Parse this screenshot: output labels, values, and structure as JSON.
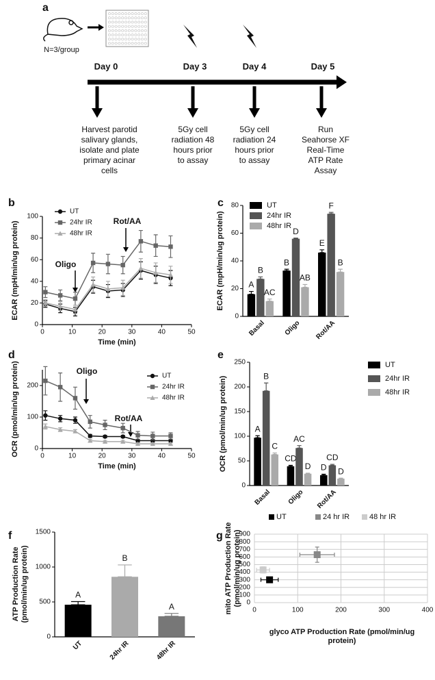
{
  "timeline": {
    "panel": "a",
    "group": "N=3/group",
    "days": [
      {
        "label": "Day 0",
        "lines": [
          "Harvest parotid",
          "salivary glands,",
          "isolate and plate",
          "primary acinar",
          "cells"
        ]
      },
      {
        "label": "Day 3",
        "lines": [
          "5Gy cell",
          "radiation 48",
          "hours prior",
          "to assay"
        ]
      },
      {
        "label": "Day 4",
        "lines": [
          "5Gy cell",
          "radiation 24",
          "hours prior",
          "to assay"
        ]
      },
      {
        "label": "Day 5",
        "lines": [
          "Run",
          "Seahorse XF",
          "Real-Time",
          "ATP Rate",
          "Assay"
        ]
      }
    ]
  },
  "chart_data": [
    {
      "type": "line",
      "panel": "b",
      "x_label": "Time (min)",
      "y_label": "ECAR (mpH/min/ug protein)",
      "annotations": [
        "Oligo",
        "Rot/AA"
      ],
      "x": [
        1,
        6,
        11,
        17,
        22,
        27,
        33,
        38,
        43
      ],
      "xlim": [
        0,
        50
      ],
      "xticks": [
        0,
        10,
        20,
        30,
        40,
        50
      ],
      "ylim": [
        0,
        100
      ],
      "yticks": [
        0,
        20,
        40,
        60,
        80,
        100
      ],
      "series": [
        {
          "name": "UT",
          "color": "#111111",
          "marker": "circle",
          "values": [
            19,
            15,
            12,
            35,
            31,
            32,
            50,
            46,
            43
          ],
          "errors": [
            3,
            4,
            4,
            6,
            6,
            6,
            8,
            8,
            7
          ]
        },
        {
          "name": "24hr IR",
          "color": "#666666",
          "marker": "square",
          "values": [
            30,
            27,
            24,
            57,
            56,
            55,
            77,
            73,
            72
          ],
          "errors": [
            5,
            5,
            6,
            9,
            9,
            8,
            10,
            10,
            10
          ]
        },
        {
          "name": "48hr IR",
          "color": "#aaaaaa",
          "marker": "triangle",
          "values": [
            20,
            17,
            14,
            37,
            33,
            34,
            52,
            48,
            46
          ],
          "errors": [
            3,
            4,
            4,
            7,
            7,
            7,
            9,
            9,
            8
          ]
        }
      ]
    },
    {
      "type": "bar",
      "panel": "c",
      "y_label": "ECAR (mpH/min/ug protein)",
      "categories": [
        "Basal",
        "Oligo",
        "Rot/AA"
      ],
      "ylim": [
        0,
        80
      ],
      "yticks": [
        0,
        20,
        40,
        60,
        80
      ],
      "series": [
        {
          "name": "UT",
          "color": "#000000",
          "values": [
            16,
            33,
            46
          ],
          "errors": [
            2,
            1,
            2
          ],
          "significance": [
            "A",
            "B",
            "E"
          ]
        },
        {
          "name": "24hr IR",
          "color": "#555555",
          "values": [
            27,
            56,
            74
          ],
          "errors": [
            1.5,
            0.5,
            1
          ],
          "significance": [
            "B",
            "D",
            "F"
          ]
        },
        {
          "name": "48hr IR",
          "color": "#aaaaaa",
          "values": [
            11,
            21,
            32
          ],
          "errors": [
            1.5,
            2,
            2
          ],
          "significance": [
            "AC",
            "AB",
            "B"
          ]
        }
      ]
    },
    {
      "type": "line",
      "panel": "d",
      "x_label": "Time (min)",
      "y_label": "OCR (pmol/min/ug protein)",
      "annotations": [
        "Oligo",
        "Rot/AA"
      ],
      "x": [
        1,
        6,
        11,
        16,
        21,
        27,
        32,
        37,
        43
      ],
      "xlim": [
        0,
        50
      ],
      "xticks": [
        0,
        10,
        20,
        30,
        40,
        50
      ],
      "ylim": [
        0,
        250
      ],
      "yticks": [
        0,
        100,
        200
      ],
      "series": [
        {
          "name": "UT",
          "color": "#111111",
          "marker": "circle",
          "values": [
            105,
            95,
            90,
            40,
            38,
            38,
            25,
            25,
            25
          ],
          "errors": [
            15,
            10,
            10,
            5,
            4,
            4,
            4,
            4,
            4
          ]
        },
        {
          "name": "24hr IR",
          "color": "#666666",
          "marker": "square",
          "values": [
            215,
            195,
            160,
            85,
            75,
            65,
            42,
            40,
            40
          ],
          "errors": [
            45,
            45,
            35,
            20,
            15,
            15,
            12,
            12,
            10
          ]
        },
        {
          "name": "48hr IR",
          "color": "#aaaaaa",
          "marker": "triangle",
          "values": [
            70,
            60,
            55,
            25,
            22,
            22,
            15,
            15,
            15
          ],
          "errors": [
            8,
            6,
            5,
            4,
            4,
            4,
            3,
            3,
            3
          ]
        }
      ]
    },
    {
      "type": "bar",
      "panel": "e",
      "y_label": "OCR (pmol/min/ug protein)",
      "categories": [
        "Basal",
        "Oligo",
        "Rot/AA"
      ],
      "ylim": [
        0,
        250
      ],
      "yticks": [
        0,
        50,
        100,
        150,
        200,
        250
      ],
      "series": [
        {
          "name": "UT",
          "color": "#000000",
          "values": [
            97,
            39,
            21
          ],
          "errors": [
            4,
            2,
            2
          ],
          "significance": [
            "A",
            "CD",
            "D"
          ]
        },
        {
          "name": "24hr IR",
          "color": "#555555",
          "values": [
            192,
            76,
            41
          ],
          "errors": [
            16,
            5,
            2
          ],
          "significance": [
            "B",
            "AC",
            "CD"
          ]
        },
        {
          "name": "48hr IR",
          "color": "#aaaaaa",
          "values": [
            63,
            24,
            14
          ],
          "errors": [
            3,
            1,
            1
          ],
          "significance": [
            "C",
            "D",
            "D"
          ]
        }
      ]
    },
    {
      "type": "bar",
      "panel": "f",
      "y_label": "ATP Production Rate (pmol/min/ug protein)",
      "categories": [
        "UT",
        "24hr IR",
        "48hr IR"
      ],
      "ylim": [
        0,
        1500
      ],
      "yticks": [
        0,
        500,
        1000,
        1500
      ],
      "series": [
        {
          "colors": [
            "#000000",
            "#aaaaaa",
            "#777777"
          ],
          "values": [
            460,
            860,
            295
          ],
          "errors": [
            45,
            170,
            40
          ],
          "significance": [
            "A",
            "B",
            "A"
          ]
        }
      ]
    },
    {
      "type": "scatter",
      "panel": "g",
      "x_label": "glyco ATP Production Rate (pmol/min/ug protein)",
      "y_label": "mito ATP Production Rate (pmol/min/ug protein)",
      "grid": true,
      "xlim": [
        0,
        400
      ],
      "xticks": [
        0,
        100,
        200,
        300,
        400
      ],
      "ylim": [
        0,
        900
      ],
      "yticks": [
        0,
        100,
        200,
        300,
        400,
        500,
        600,
        700,
        800,
        900
      ],
      "series": [
        {
          "name": "UT",
          "color": "#000000",
          "x": [
            35
          ],
          "values": [
            300
          ],
          "x_errors": [
            20
          ],
          "errors": [
            20
          ]
        },
        {
          "name": "24 hr IR",
          "color": "#888888",
          "x": [
            145
          ],
          "values": [
            630
          ],
          "x_errors": [
            40
          ],
          "errors": [
            100
          ]
        },
        {
          "name": "48 hr IR",
          "color": "#cccccc",
          "x": [
            20
          ],
          "values": [
            430
          ],
          "x_errors": [
            15
          ],
          "errors": [
            40
          ]
        }
      ]
    }
  ]
}
